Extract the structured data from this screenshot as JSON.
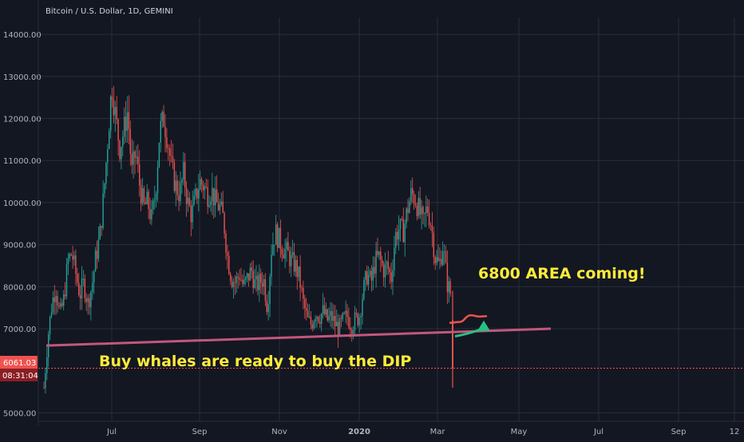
{
  "chart_data": {
    "type": "candlestick",
    "title": "Bitcoin / U.S. Dollar, 1D, GEMINI",
    "ylim": [
      4800,
      14400
    ],
    "grid": true,
    "y_ticks": [
      "14000.00",
      "13000.00",
      "12000.00",
      "11000.00",
      "10000.00",
      "9000.00",
      "8000.00",
      "7000.00",
      "5000.00"
    ],
    "y_tick_values": [
      14000,
      13000,
      12000,
      11000,
      10000,
      9000,
      8000,
      7000,
      5000
    ],
    "x_ticks": [
      "Jul",
      "Sep",
      "Nov",
      "2020",
      "Mar",
      "May",
      "Jul",
      "Sep",
      "12"
    ],
    "x_tick_positions": [
      140,
      250,
      350,
      450,
      548,
      650,
      750,
      850,
      920
    ],
    "price_label": "6061.03",
    "price_value": 6061.03,
    "countdown_label": "08:31:04",
    "price_path": [
      [
        55,
        5600
      ],
      [
        60,
        6800
      ],
      [
        65,
        7600
      ],
      [
        70,
        8000
      ],
      [
        75,
        7300
      ],
      [
        80,
        7700
      ],
      [
        85,
        8600
      ],
      [
        90,
        8800
      ],
      [
        95,
        8300
      ],
      [
        100,
        7800
      ],
      [
        105,
        8100
      ],
      [
        110,
        7600
      ],
      [
        115,
        8000
      ],
      [
        120,
        8700
      ],
      [
        125,
        9200
      ],
      [
        130,
        10200
      ],
      [
        135,
        11500
      ],
      [
        140,
        12800
      ],
      [
        145,
        12000
      ],
      [
        150,
        11300
      ],
      [
        155,
        11700
      ],
      [
        160,
        12200
      ],
      [
        165,
        10700
      ],
      [
        170,
        11200
      ],
      [
        175,
        10400
      ],
      [
        180,
        9900
      ],
      [
        185,
        10000
      ],
      [
        190,
        9600
      ],
      [
        195,
        10300
      ],
      [
        200,
        11700
      ],
      [
        205,
        12000
      ],
      [
        210,
        11500
      ],
      [
        215,
        10800
      ],
      [
        220,
        10400
      ],
      [
        225,
        10200
      ],
      [
        230,
        10700
      ],
      [
        235,
        10000
      ],
      [
        240,
        9700
      ],
      [
        245,
        10100
      ],
      [
        250,
        10500
      ],
      [
        255,
        10400
      ],
      [
        260,
        10200
      ],
      [
        265,
        10300
      ],
      [
        270,
        10000
      ],
      [
        275,
        9900
      ],
      [
        280,
        9600
      ],
      [
        285,
        8700
      ],
      [
        290,
        8200
      ],
      [
        295,
        8100
      ],
      [
        300,
        8300
      ],
      [
        305,
        8000
      ],
      [
        310,
        8200
      ],
      [
        315,
        8400
      ],
      [
        320,
        8000
      ],
      [
        325,
        8100
      ],
      [
        330,
        8200
      ],
      [
        335,
        7500
      ],
      [
        340,
        8900
      ],
      [
        345,
        9300
      ],
      [
        350,
        9100
      ],
      [
        355,
        8900
      ],
      [
        360,
        8800
      ],
      [
        365,
        8600
      ],
      [
        370,
        8500
      ],
      [
        375,
        8200
      ],
      [
        380,
        7600
      ],
      [
        385,
        7200
      ],
      [
        390,
        7100
      ],
      [
        395,
        7400
      ],
      [
        400,
        7300
      ],
      [
        405,
        7400
      ],
      [
        410,
        7200
      ],
      [
        415,
        7300
      ],
      [
        420,
        7100
      ],
      [
        425,
        7000
      ],
      [
        430,
        7200
      ],
      [
        435,
        7300
      ],
      [
        440,
        7100
      ],
      [
        445,
        7200
      ],
      [
        450,
        7300
      ],
      [
        455,
        7900
      ],
      [
        460,
        8300
      ],
      [
        465,
        8100
      ],
      [
        470,
        8600
      ],
      [
        475,
        8700
      ],
      [
        480,
        8400
      ],
      [
        485,
        8500
      ],
      [
        490,
        8200
      ],
      [
        495,
        9200
      ],
      [
        500,
        9400
      ],
      [
        505,
        9300
      ],
      [
        510,
        9800
      ],
      [
        515,
        10200
      ],
      [
        520,
        10100
      ],
      [
        525,
        9800
      ],
      [
        530,
        9500
      ],
      [
        535,
        9900
      ],
      [
        540,
        9500
      ],
      [
        545,
        8700
      ],
      [
        550,
        8500
      ],
      [
        555,
        9000
      ],
      [
        560,
        8100
      ],
      [
        565,
        7800
      ],
      [
        568,
        6061
      ]
    ],
    "projection_path": [
      [
        563,
        7140
      ],
      [
        575,
        7160
      ],
      [
        590,
        7320
      ],
      [
        600,
        7290
      ],
      [
        610,
        7300
      ]
    ],
    "arrow_path": [
      [
        570,
        6820
      ],
      [
        585,
        6870
      ],
      [
        600,
        6970
      ],
      [
        607,
        7120
      ]
    ],
    "support_line": {
      "from": [
        58,
        6600
      ],
      "to": [
        690,
        7000
      ]
    },
    "annotations": [
      "6800 AREA coming!",
      "Buy whales are ready to buy the DIP"
    ],
    "colors": {
      "background": "#131722",
      "grid": "#2a2e39",
      "up": "#26a69a",
      "down": "#ef5350",
      "support": "#c2577d",
      "annotation": "#ffeb3b",
      "projection": "#ef5350",
      "arrow": "#26c281",
      "axis_text": "#b2b5be",
      "price_tag": "#ef5350",
      "countdown_tag": "#8b1e23"
    }
  }
}
